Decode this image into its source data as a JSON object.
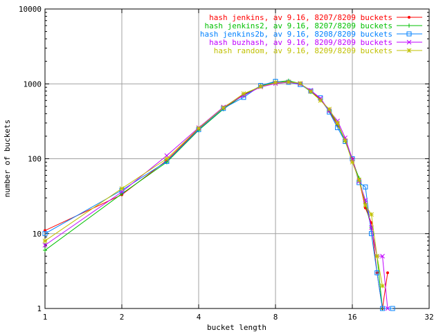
{
  "chart_data": {
    "type": "line",
    "title": "",
    "xlabel": "bucket length",
    "ylabel": "number of buckets",
    "xscale": "log2",
    "yscale": "log10",
    "xlim": [
      1,
      32
    ],
    "ylim": [
      1,
      10000
    ],
    "grid": true,
    "legend_position": "top-right",
    "x_ticks": [
      {
        "value": 1,
        "label": "1"
      },
      {
        "value": 2,
        "label": "2"
      },
      {
        "value": 4,
        "label": "4"
      },
      {
        "value": 8,
        "label": "8"
      },
      {
        "value": 16,
        "label": "16"
      },
      {
        "value": 32,
        "label": "32"
      }
    ],
    "y_ticks": [
      {
        "value": 1,
        "label": "1"
      },
      {
        "value": 10,
        "label": "10"
      },
      {
        "value": 100,
        "label": "100"
      },
      {
        "value": 1000,
        "label": "1000"
      },
      {
        "value": 10000,
        "label": "10000"
      }
    ],
    "series": [
      {
        "name": "hash jenkins, av 9.16, 8207/8209 buckets",
        "color": "#ff0000",
        "marker": "dot",
        "points": [
          [
            1,
            11
          ],
          [
            2,
            33
          ],
          [
            3,
            95
          ],
          [
            4,
            250
          ],
          [
            5,
            470
          ],
          [
            6,
            720
          ],
          [
            7,
            930
          ],
          [
            8,
            1030
          ],
          [
            9,
            1080
          ],
          [
            10,
            1000
          ],
          [
            11,
            800
          ],
          [
            12,
            620
          ],
          [
            13,
            430
          ],
          [
            14,
            280
          ],
          [
            15,
            180
          ],
          [
            16,
            100
          ],
          [
            17,
            52
          ],
          [
            18,
            22
          ],
          [
            19,
            14
          ],
          [
            20,
            3
          ],
          [
            21,
            1
          ],
          [
            22,
            3
          ]
        ]
      },
      {
        "name": "hash jenkins2, av 9.16, 8207/8209 buckets",
        "color": "#00c000",
        "marker": "plus",
        "points": [
          [
            1,
            6
          ],
          [
            2,
            34
          ],
          [
            3,
            90
          ],
          [
            4,
            240
          ],
          [
            5,
            460
          ],
          [
            6,
            710
          ],
          [
            7,
            940
          ],
          [
            8,
            1060
          ],
          [
            9,
            1100
          ],
          [
            10,
            1010
          ],
          [
            11,
            780
          ],
          [
            12,
            610
          ],
          [
            13,
            450
          ],
          [
            14,
            290
          ],
          [
            15,
            170
          ],
          [
            16,
            95
          ],
          [
            17,
            55
          ],
          [
            18,
            25
          ],
          [
            19,
            12
          ],
          [
            20,
            5
          ],
          [
            21,
            1
          ]
        ]
      },
      {
        "name": "hash jenkins2b, av 9.16, 8208/8209 buckets",
        "color": "#0080ff",
        "marker": "square",
        "points": [
          [
            1,
            10
          ],
          [
            2,
            38
          ],
          [
            3,
            92
          ],
          [
            4,
            245
          ],
          [
            5,
            470
          ],
          [
            6,
            660
          ],
          [
            7,
            950
          ],
          [
            8,
            1080
          ],
          [
            9,
            1050
          ],
          [
            10,
            980
          ],
          [
            11,
            800
          ],
          [
            12,
            650
          ],
          [
            13,
            420
          ],
          [
            14,
            260
          ],
          [
            15,
            170
          ],
          [
            16,
            100
          ],
          [
            17,
            48
          ],
          [
            18,
            42
          ],
          [
            19,
            10
          ],
          [
            20,
            3
          ],
          [
            21,
            1
          ],
          [
            23,
            1
          ]
        ]
      },
      {
        "name": "hash buzhash, av 9.16, 8209/8209 buckets",
        "color": "#c000ff",
        "marker": "cross",
        "points": [
          [
            1,
            7
          ],
          [
            2,
            36
          ],
          [
            3,
            110
          ],
          [
            4,
            260
          ],
          [
            5,
            490
          ],
          [
            6,
            700
          ],
          [
            7,
            910
          ],
          [
            8,
            1010
          ],
          [
            9,
            1050
          ],
          [
            10,
            1000
          ],
          [
            11,
            820
          ],
          [
            12,
            640
          ],
          [
            13,
            440
          ],
          [
            14,
            320
          ],
          [
            15,
            190
          ],
          [
            16,
            98
          ],
          [
            17,
            50
          ],
          [
            18,
            28
          ],
          [
            19,
            12
          ],
          [
            20,
            5
          ],
          [
            21,
            5
          ],
          [
            22,
            1
          ]
        ]
      },
      {
        "name": "hash random, av 9.16, 8209/8209 buckets",
        "color": "#c0c000",
        "marker": "star",
        "points": [
          [
            1,
            8
          ],
          [
            2,
            40
          ],
          [
            3,
            100
          ],
          [
            4,
            255
          ],
          [
            5,
            480
          ],
          [
            6,
            740
          ],
          [
            7,
            920
          ],
          [
            8,
            1040
          ],
          [
            9,
            1060
          ],
          [
            10,
            1020
          ],
          [
            11,
            790
          ],
          [
            12,
            600
          ],
          [
            13,
            460
          ],
          [
            14,
            300
          ],
          [
            15,
            175
          ],
          [
            16,
            90
          ],
          [
            17,
            52
          ],
          [
            18,
            24
          ],
          [
            19,
            18
          ],
          [
            20,
            5
          ],
          [
            21,
            2
          ]
        ]
      }
    ]
  }
}
